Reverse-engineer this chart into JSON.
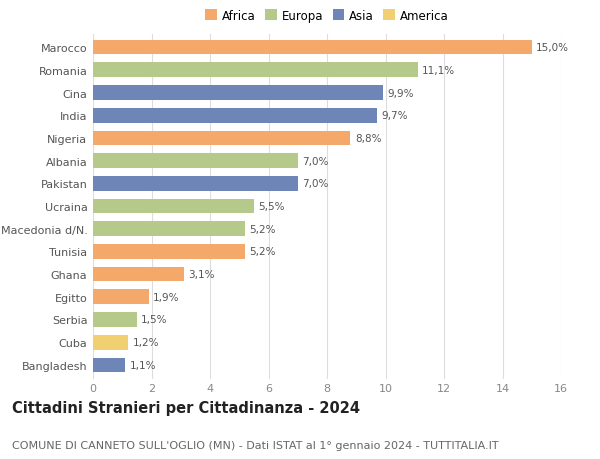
{
  "categories": [
    "Marocco",
    "Romania",
    "Cina",
    "India",
    "Nigeria",
    "Albania",
    "Pakistan",
    "Ucraina",
    "Macedonia d/N.",
    "Tunisia",
    "Ghana",
    "Egitto",
    "Serbia",
    "Cuba",
    "Bangladesh"
  ],
  "values": [
    15.0,
    11.1,
    9.9,
    9.7,
    8.8,
    7.0,
    7.0,
    5.5,
    5.2,
    5.2,
    3.1,
    1.9,
    1.5,
    1.2,
    1.1
  ],
  "labels": [
    "15,0%",
    "11,1%",
    "9,9%",
    "9,7%",
    "8,8%",
    "7,0%",
    "7,0%",
    "5,5%",
    "5,2%",
    "5,2%",
    "3,1%",
    "1,9%",
    "1,5%",
    "1,2%",
    "1,1%"
  ],
  "continents": [
    "Africa",
    "Europa",
    "Asia",
    "Asia",
    "Africa",
    "Europa",
    "Asia",
    "Europa",
    "Europa",
    "Africa",
    "Africa",
    "Africa",
    "Europa",
    "America",
    "Asia"
  ],
  "continent_colors": {
    "Africa": "#F4A96A",
    "Europa": "#B5C98A",
    "Asia": "#6E85B7",
    "America": "#F0D070"
  },
  "legend_order": [
    "Africa",
    "Europa",
    "Asia",
    "America"
  ],
  "legend_colors": [
    "#F4A96A",
    "#B5C98A",
    "#6E85B7",
    "#F0D070"
  ],
  "title": "Cittadini Stranieri per Cittadinanza - 2024",
  "subtitle": "COMUNE DI CANNETO SULL'OGLIO (MN) - Dati ISTAT al 1° gennaio 2024 - TUTTITALIA.IT",
  "xlim": [
    0,
    16
  ],
  "xticks": [
    0,
    2,
    4,
    6,
    8,
    10,
    12,
    14,
    16
  ],
  "background_color": "#ffffff",
  "grid_color": "#dddddd",
  "bar_height": 0.65,
  "title_fontsize": 10.5,
  "subtitle_fontsize": 8,
  "label_fontsize": 7.5,
  "tick_fontsize": 8,
  "legend_fontsize": 8.5
}
